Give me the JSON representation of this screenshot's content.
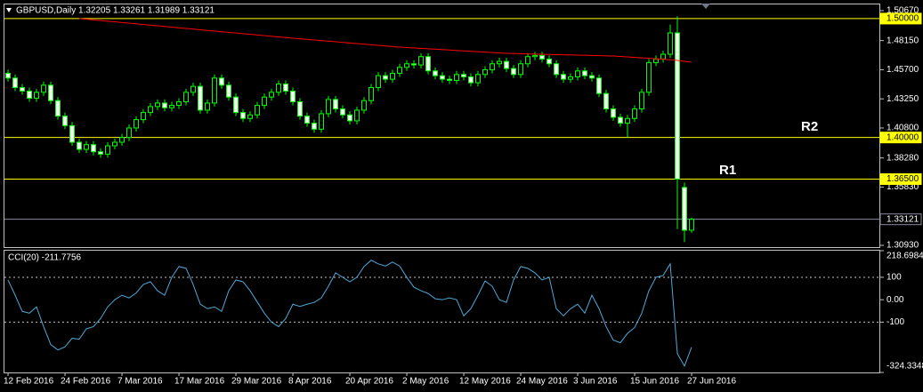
{
  "chart_data": [
    {
      "type": "candlestick",
      "title": "GBPUSD,Daily  1.32205 1.33261 1.31989 1.33121",
      "categories": [
        "12 Feb 2016",
        null,
        null,
        null,
        null,
        null,
        null,
        null,
        "24 Feb 2016",
        null,
        null,
        null,
        null,
        null,
        null,
        null,
        "7 Mar 2016",
        null,
        null,
        null,
        null,
        null,
        null,
        null,
        "17 Mar 2016",
        null,
        null,
        null,
        null,
        null,
        null,
        null,
        "29 Mar 2016",
        null,
        null,
        null,
        null,
        null,
        null,
        null,
        "8 Apr 2016",
        null,
        null,
        null,
        null,
        null,
        null,
        null,
        "20 Apr 2016",
        null,
        null,
        null,
        null,
        null,
        null,
        null,
        "2 May 2016",
        null,
        null,
        null,
        null,
        null,
        null,
        null,
        "12 May 2016",
        null,
        null,
        null,
        null,
        null,
        null,
        null,
        "24 May 2016",
        null,
        null,
        null,
        null,
        null,
        null,
        null,
        "3 Jun 2016",
        null,
        null,
        null,
        null,
        null,
        null,
        null,
        "15 Jun 2016",
        null,
        null,
        null,
        null,
        null,
        null,
        null,
        "27 Jun 2016"
      ],
      "ohlc": [
        [
          1.454,
          1.457,
          1.447,
          1.45
        ],
        [
          1.45,
          1.453,
          1.439,
          1.442
        ],
        [
          1.442,
          1.445,
          1.436,
          1.439
        ],
        [
          1.439,
          1.442,
          1.43,
          1.433
        ],
        [
          1.433,
          1.441,
          1.43,
          1.438
        ],
        [
          1.438,
          1.447,
          1.435,
          1.444
        ],
        [
          1.444,
          1.447,
          1.428,
          1.431
        ],
        [
          1.431,
          1.434,
          1.415,
          1.418
        ],
        [
          1.418,
          1.421,
          1.407,
          1.41
        ],
        [
          1.41,
          1.413,
          1.393,
          1.396
        ],
        [
          1.396,
          1.399,
          1.387,
          1.39
        ],
        [
          1.39,
          1.397,
          1.387,
          1.394
        ],
        [
          1.394,
          1.397,
          1.385,
          1.388
        ],
        [
          1.388,
          1.391,
          1.383,
          1.386
        ],
        [
          1.386,
          1.396,
          1.383,
          1.393
        ],
        [
          1.393,
          1.399,
          1.39,
          1.396
        ],
        [
          1.396,
          1.403,
          1.393,
          1.4
        ],
        [
          1.4,
          1.411,
          1.397,
          1.408
        ],
        [
          1.408,
          1.418,
          1.405,
          1.415
        ],
        [
          1.415,
          1.424,
          1.412,
          1.421
        ],
        [
          1.421,
          1.429,
          1.418,
          1.426
        ],
        [
          1.426,
          1.432,
          1.423,
          1.429
        ],
        [
          1.429,
          1.432,
          1.422,
          1.425
        ],
        [
          1.425,
          1.43,
          1.422,
          1.427
        ],
        [
          1.427,
          1.433,
          1.424,
          1.43
        ],
        [
          1.43,
          1.441,
          1.427,
          1.438
        ],
        [
          1.438,
          1.446,
          1.435,
          1.443
        ],
        [
          1.443,
          1.446,
          1.42,
          1.423
        ],
        [
          1.423,
          1.432,
          1.42,
          1.429
        ],
        [
          1.429,
          1.453,
          1.426,
          1.45
        ],
        [
          1.45,
          1.453,
          1.441,
          1.444
        ],
        [
          1.444,
          1.447,
          1.431,
          1.434
        ],
        [
          1.434,
          1.437,
          1.418,
          1.421
        ],
        [
          1.421,
          1.424,
          1.413,
          1.416
        ],
        [
          1.416,
          1.422,
          1.413,
          1.419
        ],
        [
          1.419,
          1.43,
          1.416,
          1.427
        ],
        [
          1.427,
          1.437,
          1.424,
          1.434
        ],
        [
          1.434,
          1.441,
          1.431,
          1.438
        ],
        [
          1.438,
          1.448,
          1.435,
          1.445
        ],
        [
          1.445,
          1.448,
          1.436,
          1.439
        ],
        [
          1.439,
          1.442,
          1.427,
          1.43
        ],
        [
          1.43,
          1.433,
          1.415,
          1.418
        ],
        [
          1.418,
          1.421,
          1.409,
          1.412
        ],
        [
          1.412,
          1.415,
          1.404,
          1.407
        ],
        [
          1.407,
          1.423,
          1.404,
          1.42
        ],
        [
          1.42,
          1.435,
          1.417,
          1.432
        ],
        [
          1.432,
          1.435,
          1.421,
          1.424
        ],
        [
          1.424,
          1.427,
          1.416,
          1.419
        ],
        [
          1.419,
          1.422,
          1.411,
          1.414
        ],
        [
          1.414,
          1.426,
          1.411,
          1.423
        ],
        [
          1.423,
          1.434,
          1.42,
          1.431
        ],
        [
          1.431,
          1.445,
          1.428,
          1.442
        ],
        [
          1.442,
          1.455,
          1.439,
          1.452
        ],
        [
          1.452,
          1.455,
          1.446,
          1.449
        ],
        [
          1.449,
          1.457,
          1.446,
          1.454
        ],
        [
          1.454,
          1.462,
          1.451,
          1.459
        ],
        [
          1.459,
          1.465,
          1.456,
          1.462
        ],
        [
          1.462,
          1.465,
          1.458,
          1.461
        ],
        [
          1.461,
          1.471,
          1.458,
          1.468
        ],
        [
          1.468,
          1.471,
          1.453,
          1.456
        ],
        [
          1.456,
          1.459,
          1.449,
          1.452
        ],
        [
          1.452,
          1.455,
          1.446,
          1.449
        ],
        [
          1.449,
          1.452,
          1.445,
          1.448
        ],
        [
          1.448,
          1.456,
          1.445,
          1.453
        ],
        [
          1.453,
          1.456,
          1.448,
          1.451
        ],
        [
          1.451,
          1.454,
          1.443,
          1.446
        ],
        [
          1.446,
          1.456,
          1.443,
          1.453
        ],
        [
          1.453,
          1.46,
          1.45,
          1.457
        ],
        [
          1.457,
          1.465,
          1.454,
          1.462
        ],
        [
          1.462,
          1.467,
          1.459,
          1.464
        ],
        [
          1.464,
          1.467,
          1.455,
          1.458
        ],
        [
          1.458,
          1.461,
          1.45,
          1.453
        ],
        [
          1.453,
          1.465,
          1.45,
          1.462
        ],
        [
          1.462,
          1.471,
          1.459,
          1.468
        ],
        [
          1.468,
          1.472,
          1.465,
          1.469
        ],
        [
          1.469,
          1.472,
          1.463,
          1.466
        ],
        [
          1.466,
          1.469,
          1.459,
          1.462
        ],
        [
          1.462,
          1.465,
          1.45,
          1.453
        ],
        [
          1.453,
          1.456,
          1.446,
          1.449
        ],
        [
          1.449,
          1.454,
          1.446,
          1.451
        ],
        [
          1.451,
          1.459,
          1.448,
          1.456
        ],
        [
          1.456,
          1.459,
          1.449,
          1.452
        ],
        [
          1.452,
          1.455,
          1.447,
          1.45
        ],
        [
          1.45,
          1.453,
          1.434,
          1.437
        ],
        [
          1.437,
          1.44,
          1.421,
          1.424
        ],
        [
          1.424,
          1.427,
          1.414,
          1.417
        ],
        [
          1.417,
          1.42,
          1.409,
          1.412
        ],
        [
          1.412,
          1.419,
          1.4,
          1.416
        ],
        [
          1.416,
          1.427,
          1.413,
          1.424
        ],
        [
          1.424,
          1.441,
          1.421,
          1.438
        ],
        [
          1.438,
          1.466,
          1.435,
          1.463
        ],
        [
          1.463,
          1.469,
          1.46,
          1.466
        ],
        [
          1.466,
          1.473,
          1.463,
          1.47
        ],
        [
          1.47,
          1.495,
          1.467,
          1.488
        ],
        [
          1.488,
          1.502,
          1.3229,
          1.365
        ],
        [
          1.358,
          1.362,
          1.312,
          1.322
        ],
        [
          1.32205,
          1.33261,
          1.31989,
          1.33121
        ]
      ],
      "bull_color": "#000000",
      "bear_color": "#ffffff",
      "candle_line_color": "#00ff00",
      "ma": {
        "x": [
          10,
          25,
          40,
          55,
          70,
          85,
          93,
          96
        ],
        "values": [
          1.5,
          1.4917,
          1.4835,
          1.476,
          1.4708,
          1.4685,
          1.4655,
          1.4633
        ],
        "color": "#ff0000"
      },
      "ylim": [
        1.3078,
        1.5119
      ],
      "yticks": [
        {
          "value": 1.5067,
          "label": "1.50670"
        },
        {
          "value": 1.4815,
          "label": "1.48150"
        },
        {
          "value": 1.457,
          "label": "1.45700"
        },
        {
          "value": 1.4325,
          "label": "1.43250"
        },
        {
          "value": 1.408,
          "label": "1.40800"
        },
        {
          "value": 1.3828,
          "label": "1.38280"
        },
        {
          "value": 1.3583,
          "label": "1.35830"
        },
        {
          "value": 1.3093,
          "label": "1.30930"
        }
      ],
      "levels": [
        {
          "value": 1.5,
          "label": "1.50000",
          "color": "#ffff00"
        },
        {
          "value": 1.4,
          "label": "1.40000",
          "color": "#ffff00"
        },
        {
          "value": 1.365,
          "label": "1.36500",
          "color": "#ffff00"
        }
      ],
      "current_price": {
        "value": 1.33121,
        "label": "1.33121",
        "color": "#8a8aa0"
      },
      "annotations": [
        "R2",
        "R1"
      ]
    },
    {
      "type": "line",
      "title": "CCI(20) -211.7756",
      "color": "#4fa8d8",
      "values": [
        88,
        20,
        -52,
        -60,
        -32,
        -120,
        -200,
        -224,
        -210,
        -172,
        -176,
        -130,
        -120,
        -84,
        -32,
        0,
        20,
        8,
        30,
        68,
        80,
        40,
        20,
        100,
        148,
        140,
        68,
        -20,
        -40,
        -32,
        -52,
        40,
        88,
        80,
        40,
        -10,
        -60,
        -100,
        -120,
        -84,
        -20,
        -30,
        -20,
        -12,
        8,
        60,
        120,
        100,
        80,
        100,
        148,
        176,
        160,
        150,
        168,
        150,
        100,
        56,
        40,
        28,
        4,
        0,
        8,
        0,
        -72,
        -40,
        20,
        84,
        60,
        0,
        -12,
        88,
        148,
        140,
        120,
        88,
        100,
        -40,
        -72,
        -40,
        -20,
        -60,
        20,
        -40,
        -120,
        -180,
        -192,
        -150,
        -124,
        -60,
        40,
        100,
        108,
        160,
        -240,
        -296,
        -211.7756
      ],
      "ylim": [
        -324.3348,
        218.6984
      ],
      "yticks": [
        218.6984,
        100,
        {
          "value": 0,
          "label": "0.00"
        },
        -100,
        -324.3348
      ]
    }
  ]
}
